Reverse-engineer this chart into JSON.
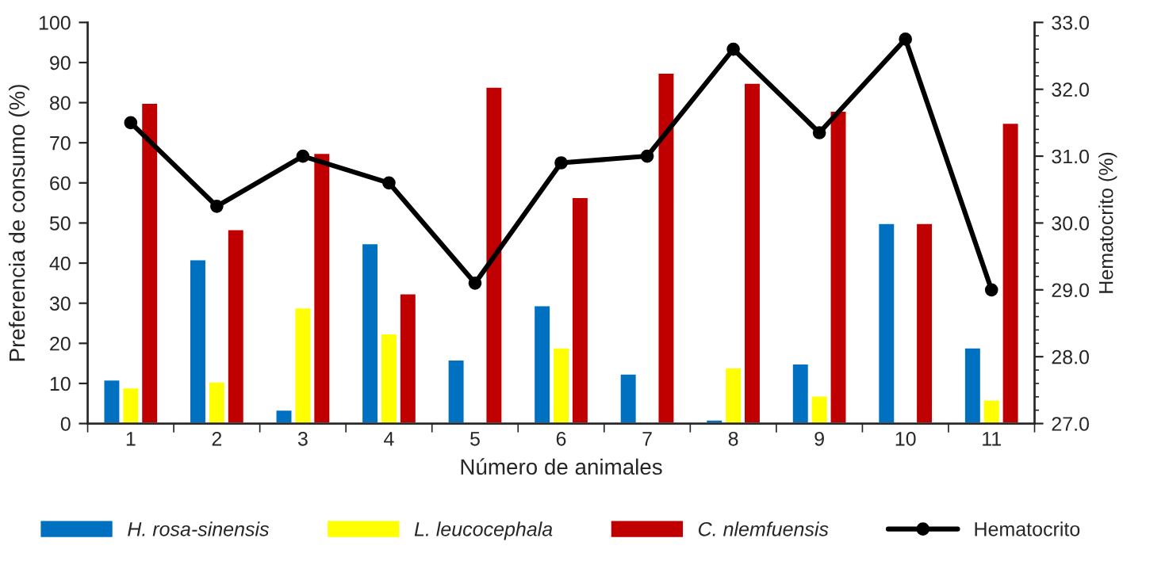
{
  "chart_data": {
    "type": "bar",
    "xlabel": "Número de animales",
    "ylabel": "Preferencia de consumo (%)",
    "y2label": "Hematocrito (%)",
    "categories": [
      "1",
      "2",
      "3",
      "4",
      "5",
      "6",
      "7",
      "8",
      "9",
      "10",
      "11"
    ],
    "series": [
      {
        "name": "H. rosa-sinensis",
        "color": "#0070c0",
        "values": [
          11,
          41,
          3.5,
          45,
          16,
          29.5,
          12.5,
          1,
          15,
          50,
          19
        ]
      },
      {
        "name": "L. leucocephala",
        "color": "#ffff00",
        "values": [
          9,
          10.5,
          29,
          22.5,
          null,
          19,
          null,
          14,
          7,
          null,
          6
        ]
      },
      {
        "name": "C. nlemfuensis",
        "color": "#c00000",
        "values": [
          80,
          48.5,
          67.5,
          32.5,
          84,
          56.5,
          87.5,
          85,
          78,
          50,
          75
        ]
      },
      {
        "name": "Hematocrito",
        "type": "line",
        "axis": "y2",
        "color": "#000000",
        "marker": "circle",
        "values": [
          31.5,
          30.25,
          31.0,
          30.6,
          29.1,
          30.9,
          31.0,
          32.6,
          31.35,
          32.75,
          29.0
        ]
      }
    ],
    "ylim": [
      0,
      100
    ],
    "yticks": [
      0,
      10,
      20,
      30,
      40,
      50,
      60,
      70,
      80,
      90,
      100
    ],
    "y2lim": [
      27,
      33
    ],
    "y2ticks": [
      {
        "value": 27,
        "label": "27.0"
      },
      {
        "value": 28,
        "label": "28.0"
      },
      {
        "value": 29,
        "label": "29.0"
      },
      {
        "value": 30,
        "label": "30.0"
      },
      {
        "value": 31,
        "label": "31.0"
      },
      {
        "value": 32,
        "label": "32.0"
      },
      {
        "value": 33,
        "label": "33.0"
      }
    ],
    "grid": false,
    "legend": "bottom"
  }
}
